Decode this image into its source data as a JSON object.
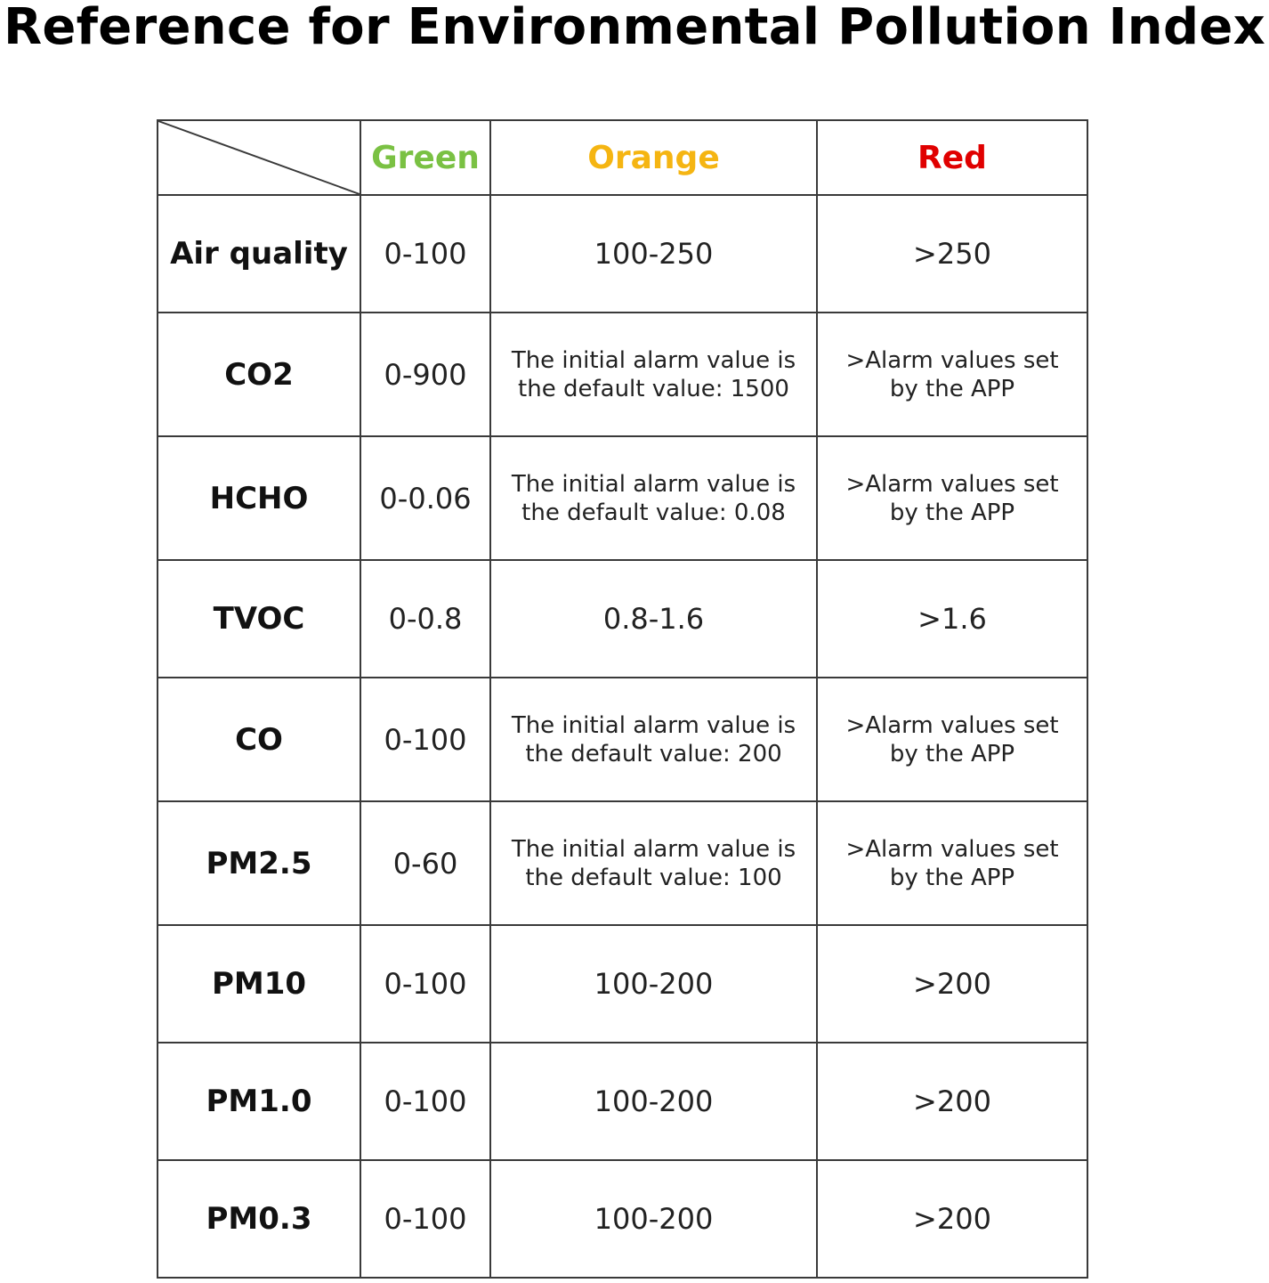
{
  "title": "Reference for Environmental Pollution Index",
  "columns": {
    "green": {
      "label": "Green",
      "color": "#7ac143"
    },
    "orange": {
      "label": "Orange",
      "color": "#f5b512"
    },
    "red": {
      "label": "Red",
      "color": "#e00000"
    }
  },
  "rows": [
    {
      "name": "Air quality",
      "green": "0-100",
      "orange": "100-250",
      "red": ">250"
    },
    {
      "name": "CO2",
      "green": "0-900",
      "orange": [
        "The initial alarm value is",
        "the default value: 1500"
      ],
      "red": [
        ">Alarm values set",
        "by the APP"
      ]
    },
    {
      "name": "HCHO",
      "green": "0-0.06",
      "orange": [
        "The initial alarm value is",
        "the default value: 0.08"
      ],
      "red": [
        ">Alarm values set",
        "by the APP"
      ]
    },
    {
      "name": "TVOC",
      "green": "0-0.8",
      "orange": "0.8-1.6",
      "red": ">1.6"
    },
    {
      "name": "CO",
      "green": "0-100",
      "orange": [
        "The initial alarm value is",
        "the default value: 200"
      ],
      "red": [
        ">Alarm values set",
        "by the APP"
      ]
    },
    {
      "name": "PM2.5",
      "green": "0-60",
      "orange": [
        "The initial alarm value is",
        "the default value: 100"
      ],
      "red": [
        ">Alarm values set",
        "by the APP"
      ]
    },
    {
      "name": "PM10",
      "green": "0-100",
      "orange": "100-200",
      "red": ">200"
    },
    {
      "name": "PM1.0",
      "green": "0-100",
      "orange": "100-200",
      "red": ">200"
    },
    {
      "name": "PM0.3",
      "green": "0-100",
      "orange": "100-200",
      "red": ">200"
    }
  ]
}
